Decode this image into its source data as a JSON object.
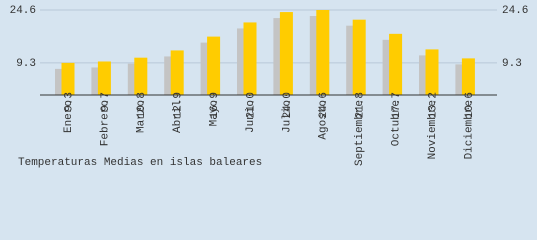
{
  "chart_data": {
    "type": "bar",
    "title": "Temperaturas Medias en islas baleares",
    "categories": [
      "Enero",
      "Febrero",
      "Marzo",
      "Abril",
      "Mayo",
      "Junio",
      "Julio",
      "Agosto",
      "Septiembre",
      "Octubre",
      "Noviembre",
      "Diciembre"
    ],
    "values": [
      9.3,
      9.7,
      10.8,
      12.9,
      16.9,
      21.0,
      24.0,
      24.6,
      21.8,
      17.7,
      13.2,
      10.6
    ],
    "value_labels": [
      "9.3",
      "9.7",
      "10.8",
      "12.9",
      "16.9",
      "21.0",
      "24.0",
      "24.6",
      "21.8",
      "17.7",
      "13.2",
      "10.6"
    ],
    "color": "#ffcc00",
    "ylim": [
      0,
      24.6
    ],
    "yticks": [
      9.3,
      24.6
    ],
    "grid": true
  }
}
